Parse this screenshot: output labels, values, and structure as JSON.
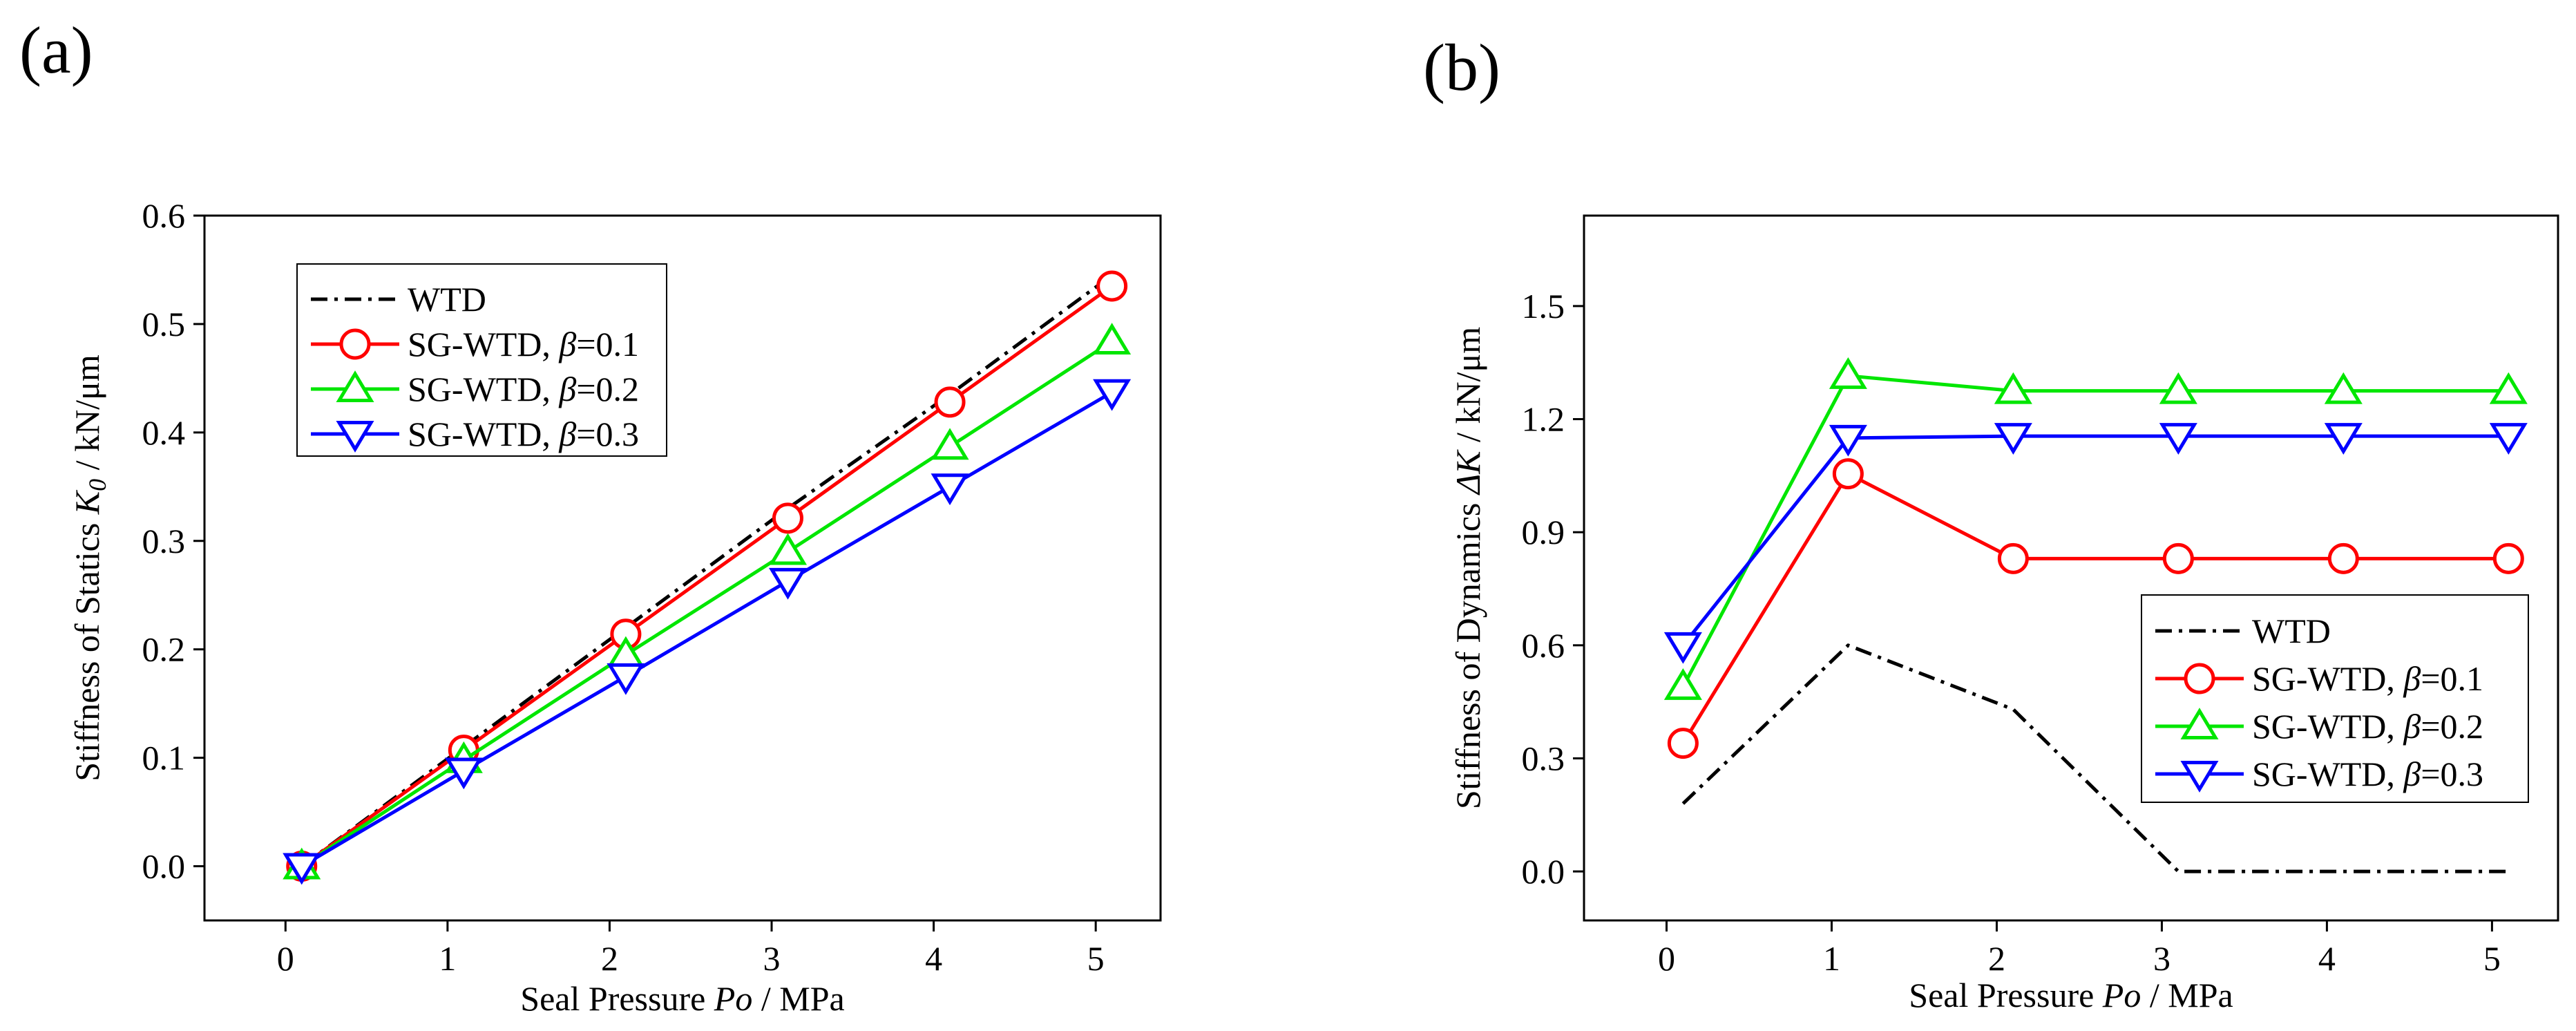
{
  "chart_data": [
    {
      "panel_label": "(a)",
      "type": "line",
      "xlabel": {
        "pre": "Seal Pressure ",
        "ital": "Po",
        "post": " /  MPa"
      },
      "ylabel": {
        "pre": "Stiffness of Statics ",
        "ital": "K",
        "sub": "0",
        "post": " / kN/μm"
      },
      "xlim": [
        -0.5,
        5.4
      ],
      "ylim": [
        -0.05,
        0.6
      ],
      "xticks": [
        0,
        1,
        2,
        3,
        4,
        5
      ],
      "yticks": [
        0.0,
        0.1,
        0.2,
        0.3,
        0.4,
        0.5,
        0.6
      ],
      "ytick_labels": [
        "0.0",
        "0.1",
        "0.2",
        "0.3",
        "0.4",
        "0.5",
        "0.6"
      ],
      "legend_placement": "top-left",
      "series": [
        {
          "name_pre": "WTD",
          "name_ital": "",
          "name_post": "",
          "color": "#000000",
          "dash": "dashdot",
          "marker": "none",
          "x": [
            0.1,
            1.1,
            2.1,
            3.1,
            4.1,
            5.1
          ],
          "y": [
            0.0,
            0.11,
            0.22,
            0.33,
            0.435,
            0.545
          ]
        },
        {
          "name_pre": "SG-WTD, ",
          "name_ital": "β",
          "name_post": "=0.1",
          "color": "#ff0000",
          "dash": "solid",
          "marker": "circle",
          "x": [
            0.1,
            1.1,
            2.1,
            3.1,
            4.1,
            5.1
          ],
          "y": [
            0.0,
            0.107,
            0.214,
            0.321,
            0.428,
            0.535
          ]
        },
        {
          "name_pre": "SG-WTD, ",
          "name_ital": "β",
          "name_post": "=0.2",
          "color": "#00e600",
          "dash": "solid",
          "marker": "triangle-up",
          "x": [
            0.1,
            1.1,
            2.1,
            3.1,
            4.1,
            5.1
          ],
          "y": [
            0.0,
            0.098,
            0.195,
            0.29,
            0.387,
            0.484
          ]
        },
        {
          "name_pre": "SG-WTD, ",
          "name_ital": "β",
          "name_post": "=0.3",
          "color": "#0000ff",
          "dash": "solid",
          "marker": "triangle-down",
          "x": [
            0.1,
            1.1,
            2.1,
            3.1,
            4.1,
            5.1
          ],
          "y": [
            0.0,
            0.088,
            0.175,
            0.263,
            0.35,
            0.437
          ]
        }
      ]
    },
    {
      "panel_label": "(b)",
      "type": "line",
      "xlabel": {
        "pre": "Seal Pressure ",
        "ital": "Po",
        "post": " / MPa"
      },
      "ylabel": {
        "pre": "Stiffness of Dynamics ",
        "ital": "ΔK",
        "sub": "",
        "post": " / kN/μm"
      },
      "xlim": [
        -0.5,
        5.4
      ],
      "ylim": [
        -0.13,
        1.74
      ],
      "xticks": [
        0,
        1,
        2,
        3,
        4,
        5
      ],
      "yticks": [
        0.0,
        0.3,
        0.6,
        0.9,
        1.2,
        1.5
      ],
      "ytick_labels": [
        "0.0",
        "0.3",
        "0.6",
        "0.9",
        "1.2",
        "1.5"
      ],
      "legend_placement": "bottom-right",
      "series": [
        {
          "name_pre": "WTD",
          "name_ital": "",
          "name_post": "",
          "color": "#000000",
          "dash": "dashdot",
          "marker": "none",
          "x": [
            0.1,
            1.1,
            2.1,
            3.1,
            4.1,
            5.1
          ],
          "y": [
            0.18,
            0.6,
            0.43,
            0.0,
            0.0,
            0.0
          ]
        },
        {
          "name_pre": "SG-WTD, ",
          "name_ital": "β",
          "name_post": "=0.1",
          "color": "#ff0000",
          "dash": "solid",
          "marker": "circle",
          "x": [
            0.1,
            1.1,
            2.1,
            3.1,
            4.1,
            5.1
          ],
          "y": [
            0.34,
            1.055,
            0.83,
            0.83,
            0.83,
            0.83
          ]
        },
        {
          "name_pre": "SG-WTD, ",
          "name_ital": "β",
          "name_post": "=0.2",
          "color": "#00e600",
          "dash": "solid",
          "marker": "triangle-up",
          "x": [
            0.1,
            1.1,
            2.1,
            3.1,
            4.1,
            5.1
          ],
          "y": [
            0.49,
            1.315,
            1.275,
            1.275,
            1.275,
            1.275
          ]
        },
        {
          "name_pre": "SG-WTD, ",
          "name_ital": "β",
          "name_post": "=0.3",
          "color": "#0000ff",
          "dash": "solid",
          "marker": "triangle-down",
          "x": [
            0.1,
            1.1,
            2.1,
            3.1,
            4.1,
            5.1
          ],
          "y": [
            0.6,
            1.15,
            1.155,
            1.155,
            1.155,
            1.155
          ]
        }
      ]
    }
  ]
}
